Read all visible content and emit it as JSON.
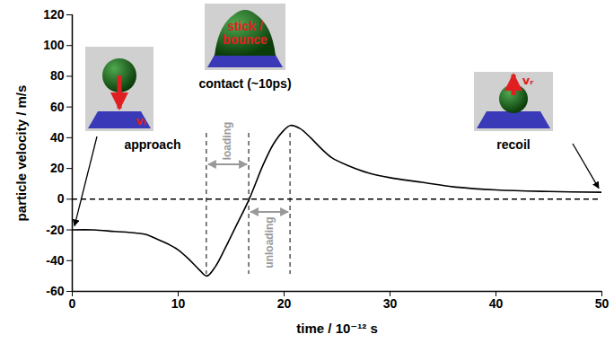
{
  "chart_data": {
    "type": "line",
    "x": [
      0,
      2,
      4,
      6,
      7,
      8,
      9,
      10,
      11,
      12,
      12.7,
      13.5,
      14.5,
      15.5,
      16.7,
      18,
      19,
      20,
      20.6,
      21.5,
      22.5,
      23.5,
      24.5,
      26,
      28,
      30,
      33,
      36,
      40,
      45,
      50
    ],
    "values": [
      -20,
      -20,
      -21,
      -22,
      -23,
      -26,
      -29,
      -33,
      -39,
      -46,
      -50,
      -44,
      -31,
      -17,
      0,
      22,
      36,
      45,
      48,
      46,
      40,
      33,
      27,
      22,
      17,
      14,
      11,
      8,
      6,
      5,
      4.5
    ],
    "color": "#000000",
    "xlabel": "time / 10⁻¹² s",
    "ylabel": "particle velocity / m/s",
    "xlim": [
      0,
      50
    ],
    "xticks": [
      0,
      10,
      20,
      30,
      40,
      50
    ],
    "ylim": [
      -60,
      120
    ],
    "yticks": [
      -60,
      -40,
      -20,
      0,
      20,
      40,
      60,
      80,
      100,
      120
    ],
    "reference_lines": {
      "y": [
        0
      ],
      "x": [
        12.7,
        16.7,
        20.6
      ]
    },
    "phases": [
      {
        "label": "loading",
        "x": [
          12.7,
          16.7
        ]
      },
      {
        "label": "unloading",
        "x": [
          16.7,
          20.6
        ]
      }
    ],
    "insets": [
      {
        "label": "approach",
        "text": "vᵢ"
      },
      {
        "label": "contact (~10ps)",
        "text": "stick / bounce"
      },
      {
        "label": "recoil",
        "text": "vᵣ"
      }
    ]
  }
}
